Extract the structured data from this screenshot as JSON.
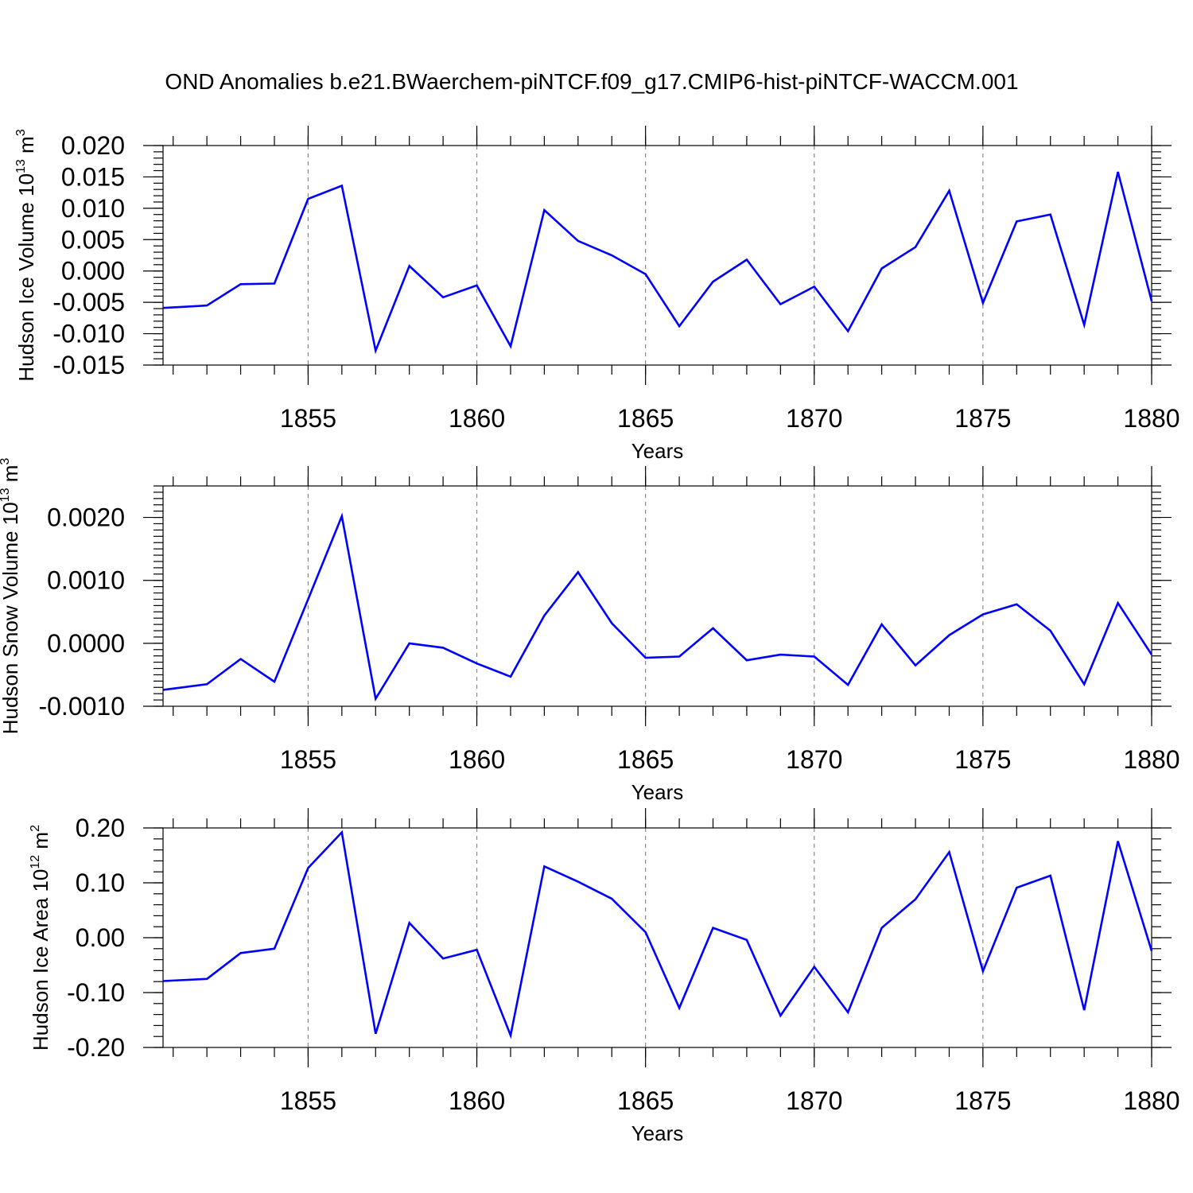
{
  "figure": {
    "title": "OND Anomalies b.e21.BWaerchem-piNTCF.f09_g17.CMIP6-hist-piNTCF-WACCM.001"
  },
  "colors": {
    "series": "#0000ff",
    "grid": "#888888",
    "axis": "#000000"
  },
  "chart_data": [
    {
      "type": "line",
      "title": "",
      "xlabel": "Years",
      "ylabel_text": "Hudson Ice Volume 10",
      "ylabel_exp": "13",
      "ylabel_unit": " m",
      "ylabel_unit_exp": "3",
      "xlim": [
        1850.7,
        1880
      ],
      "ylim": [
        -0.015,
        0.02
      ],
      "x_ticks": [
        1855,
        1860,
        1865,
        1870,
        1875,
        1880
      ],
      "x_tick_labels": [
        "1855",
        "1860",
        "1865",
        "1870",
        "1875",
        "1880"
      ],
      "y_ticks": [
        -0.015,
        -0.01,
        -0.005,
        0.0,
        0.005,
        0.01,
        0.015,
        0.02
      ],
      "y_tick_labels": [
        "-0.015",
        "-0.010",
        "-0.005",
        "0.000",
        "0.005",
        "0.010",
        "0.015",
        "0.020"
      ],
      "y_minor_step": 0.001,
      "x_minor_step": 1,
      "grid_x": true,
      "series": [
        {
          "name": "Hudson Ice Volume",
          "x": [
            1850.7,
            1852,
            1853,
            1854,
            1855,
            1856,
            1857,
            1858,
            1859,
            1860,
            1861,
            1862,
            1863,
            1864,
            1865,
            1866,
            1867,
            1868,
            1869,
            1870,
            1871,
            1872,
            1873,
            1874,
            1875,
            1876,
            1877,
            1878,
            1879,
            1880
          ],
          "values": [
            -0.0059,
            -0.0055,
            -0.0021,
            -0.002,
            0.0115,
            0.0136,
            -0.0127,
            0.0008,
            -0.0042,
            -0.0023,
            -0.012,
            0.0097,
            0.0048,
            0.0025,
            -0.0005,
            -0.0088,
            -0.0017,
            0.0018,
            -0.0053,
            -0.0025,
            -0.0096,
            0.0004,
            0.0038,
            0.0128,
            -0.0051,
            0.0079,
            0.009,
            -0.0086,
            0.0158,
            -0.0048
          ]
        }
      ]
    },
    {
      "type": "line",
      "title": "",
      "xlabel": "Years",
      "ylabel_text": "Hudson Snow Volume 10",
      "ylabel_exp": "13",
      "ylabel_unit": " m",
      "ylabel_unit_exp": "3",
      "xlim": [
        1850.7,
        1880
      ],
      "ylim": [
        -0.001,
        0.0025
      ],
      "x_ticks": [
        1855,
        1860,
        1865,
        1870,
        1875,
        1880
      ],
      "x_tick_labels": [
        "1855",
        "1860",
        "1865",
        "1870",
        "1875",
        "1880"
      ],
      "y_ticks": [
        -0.001,
        0.0,
        0.001,
        0.002
      ],
      "y_tick_labels": [
        "-0.0010",
        "0.0000",
        "0.0010",
        "0.0020"
      ],
      "y_minor_step": 0.0001,
      "x_minor_step": 1,
      "grid_x": true,
      "series": [
        {
          "name": "Hudson Snow Volume",
          "x": [
            1850.7,
            1852,
            1853,
            1854,
            1855,
            1856,
            1857,
            1858,
            1859,
            1860,
            1861,
            1862,
            1863,
            1864,
            1865,
            1866,
            1867,
            1868,
            1869,
            1870,
            1871,
            1872,
            1873,
            1874,
            1875,
            1876,
            1877,
            1878,
            1879,
            1880
          ],
          "values": [
            -0.00074,
            -0.00065,
            -0.00025,
            -0.00061,
            0.0007,
            0.00202,
            -0.00088,
            0.0,
            -7e-05,
            -0.00032,
            -0.00053,
            0.00044,
            0.00113,
            0.00032,
            -0.00023,
            -0.00021,
            0.00024,
            -0.00027,
            -0.00018,
            -0.00021,
            -0.00066,
            0.0003,
            -0.00035,
            0.00013,
            0.00046,
            0.00062,
            0.0002,
            -0.00065,
            0.00064,
            -0.00018
          ]
        }
      ]
    },
    {
      "type": "line",
      "title": "",
      "xlabel": "Years",
      "ylabel_text": "Hudson Ice Area 10",
      "ylabel_exp": "12",
      "ylabel_unit": " m",
      "ylabel_unit_exp": "2",
      "xlim": [
        1850.7,
        1880
      ],
      "ylim": [
        -0.2,
        0.2
      ],
      "x_ticks": [
        1855,
        1860,
        1865,
        1870,
        1875,
        1880
      ],
      "x_tick_labels": [
        "1855",
        "1860",
        "1865",
        "1870",
        "1875",
        "1880"
      ],
      "y_ticks": [
        -0.2,
        -0.1,
        0.0,
        0.1,
        0.2
      ],
      "y_tick_labels": [
        "-0.20",
        "-0.10",
        "0.00",
        "0.10",
        "0.20"
      ],
      "y_minor_step": 0.02,
      "x_minor_step": 1,
      "grid_x": true,
      "series": [
        {
          "name": "Hudson Ice Area",
          "x": [
            1850.7,
            1852,
            1853,
            1854,
            1855,
            1856,
            1857,
            1858,
            1859,
            1860,
            1861,
            1862,
            1863,
            1864,
            1865,
            1866,
            1867,
            1868,
            1869,
            1870,
            1871,
            1872,
            1873,
            1874,
            1875,
            1876,
            1877,
            1878,
            1879,
            1880
          ],
          "values": [
            -0.079,
            -0.075,
            -0.028,
            -0.02,
            0.127,
            0.192,
            -0.175,
            0.027,
            -0.038,
            -0.022,
            -0.178,
            0.13,
            0.102,
            0.071,
            0.01,
            -0.128,
            0.018,
            -0.004,
            -0.142,
            -0.053,
            -0.136,
            0.018,
            0.07,
            0.156,
            -0.061,
            0.091,
            0.113,
            -0.132,
            0.176,
            -0.024
          ]
        }
      ]
    }
  ]
}
